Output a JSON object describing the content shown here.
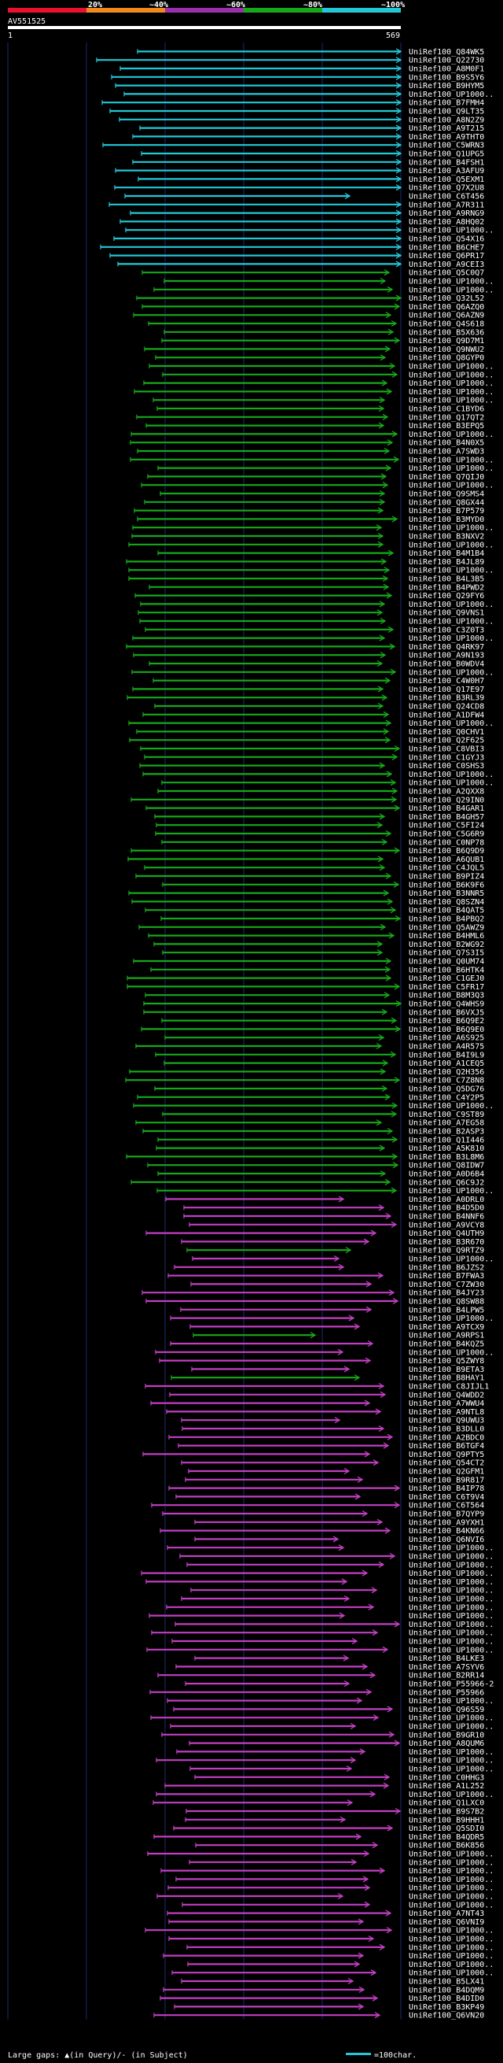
{
  "chart_data": {
    "type": "alignment-map",
    "title": "AV551525",
    "query_range": [
      1,
      569
    ],
    "axis": {
      "start_label": "1",
      "end_label": "569"
    },
    "identity_legend": [
      {
        "label": "20%",
        "color": "#e8122e"
      },
      {
        "label": "~40%",
        "color": "#f08a1c"
      },
      {
        "label": "~60%",
        "color": "#9b2fae"
      },
      {
        "label": "~80%",
        "color": "#17a81a"
      },
      {
        "label": "~100%",
        "color": "#23c8d8"
      }
    ],
    "footer_note": "Large gaps: ▲(in Query)/- (in Subject)",
    "scale_note": "=100char.",
    "group_colors": {
      "cyan": "#23c8d8",
      "green": "#17a81a",
      "magenta": "#c23fc2"
    },
    "hits": [
      "UniRef100_Q84WK5",
      "UniRef100_Q22730",
      "UniRef100_A8M0F1",
      "UniRef100_B9S5Y6",
      "UniRef100_B9HYM5",
      "UniRef100_UP1000..",
      "UniRef100_B7FMH4",
      "UniRef100_Q9LT35",
      "UniRef100_A8N2Z9",
      "UniRef100_A9T215",
      "UniRef100_A9THT0",
      "UniRef100_C5WRN3",
      "UniRef100_Q1UPG5",
      "UniRef100_B4FSH1",
      "UniRef100_A3AFU9",
      "UniRef100_Q5EXM1",
      "UniRef100_Q7X2U8",
      "UniRef100_C6T456",
      "UniRef100_A7R311",
      "UniRef100_A9RNG9",
      "UniRef100_A8HQ02",
      "UniRef100_UP1000..",
      "UniRef100_Q54X16",
      "UniRef100_B6CHE7",
      "UniRef100_Q6PR17",
      "UniRef100_A9CEI3",
      "UniRef100_Q5C0Q7",
      "UniRef100_UP1000..",
      "UniRef100_UP1000..",
      "UniRef100_Q32L52",
      "UniRef100_Q6AZQ0",
      "UniRef100_Q6AZN9",
      "UniRef100_Q4S618",
      "UniRef100_B5X636",
      "UniRef100_Q9D7M1",
      "UniRef100_Q9NWU2",
      "UniRef100_Q8GYP0",
      "UniRef100_UP1000..",
      "UniRef100_UP1000..",
      "UniRef100_UP1000..",
      "UniRef100_UP1000..",
      "UniRef100_UP1000..",
      "UniRef100_C1BYD6",
      "UniRef100_Q17QT2",
      "UniRef100_B3EPQ5",
      "UniRef100_UP1000..",
      "UniRef100_B4N0X5",
      "UniRef100_A7SWD3",
      "UniRef100_UP1000..",
      "UniRef100_UP1000..",
      "UniRef100_Q7QIJ0",
      "UniRef100_UP1000..",
      "UniRef100_Q9SMS4",
      "UniRef100_Q8GX44",
      "UniRef100_B7P579",
      "UniRef100_B3MYD0",
      "UniRef100_UP1000..",
      "UniRef100_B3NXV2",
      "UniRef100_UP1000..",
      "UniRef100_B4M1B4",
      "UniRef100_B4JL89",
      "UniRef100_UP1000..",
      "UniRef100_B4L3B5",
      "UniRef100_B4PWD2",
      "UniRef100_Q29FY6",
      "UniRef100_UP1000..",
      "UniRef100_Q9VNS1",
      "UniRef100_UP1000..",
      "UniRef100_C3Z0T3",
      "UniRef100_UP1000..",
      "UniRef100_Q4RK97",
      "UniRef100_A9N193",
      "UniRef100_B0WDV4",
      "UniRef100_UP1000..",
      "UniRef100_C4W0H7",
      "UniRef100_Q17E97",
      "UniRef100_B3RL39",
      "UniRef100_Q24CD8",
      "UniRef100_A1DFW4",
      "UniRef100_UP1000..",
      "UniRef100_Q0CHV1",
      "UniRef100_Q2F625",
      "UniRef100_C8VBI3",
      "UniRef100_C1GYJ3",
      "UniRef100_C0SHS3",
      "UniRef100_UP1000..",
      "UniRef100_UP1000..",
      "UniRef100_A2QXX8",
      "UniRef100_Q29IN0",
      "UniRef100_B4GAR1",
      "UniRef100_B4GH57",
      "UniRef100_C5FI24",
      "UniRef100_C5G6R9",
      "UniRef100_C0NP78",
      "UniRef100_B6Q9D9",
      "UniRef100_A6QUB1",
      "UniRef100_C4JQL5",
      "UniRef100_B9PIZ4",
      "UniRef100_B6K9F6",
      "UniRef100_B3NNR5",
      "UniRef100_Q8SZN4",
      "UniRef100_B4QAT5",
      "UniRef100_B4PBQ2",
      "UniRef100_Q5AWZ9",
      "UniRef100_B4HML6",
      "UniRef100_B2WG92",
      "UniRef100_Q7S3I5",
      "UniRef100_Q0UM74",
      "UniRef100_B6HTK4",
      "UniRef100_C1GEJ0",
      "UniRef100_C5FR17",
      "UniRef100_B8M3Q3",
      "UniRef100_Q4WHS9",
      "UniRef100_B6VXJ5",
      "UniRef100_B6Q9E2",
      "UniRef100_B6Q9E0",
      "UniRef100_A6S925",
      "UniRef100_A4R575",
      "UniRef100_B4I9L9",
      "UniRef100_A1CEQ5",
      "UniRef100_Q2H356",
      "UniRef100_C7Z8N8",
      "UniRef100_Q5DG76",
      "UniRef100_C4Y2P5",
      "UniRef100_UP1000..",
      "UniRef100_C9ST89",
      "UniRef100_A7EG58",
      "UniRef100_B2ASP3",
      "UniRef100_Q1I446",
      "UniRef100_A5K810",
      "UniRef100_B3L8M6",
      "UniRef100_Q8IDW7",
      "UniRef100_A0D6B4",
      "UniRef100_Q6C9J2",
      "UniRef100_UP1000..",
      "UniRef100_A0DRL0",
      "UniRef100_B4D5D0",
      "UniRef100_B4NNF6",
      "UniRef100_A9VCY8",
      "UniRef100_Q4UTH9",
      "UniRef100_B3R670",
      "UniRef100_Q9RTZ9",
      "UniRef100_UP1000..",
      "UniRef100_B6JZS2",
      "UniRef100_B7FWA3",
      "UniRef100_C7ZW30",
      "UniRef100_B4JY23",
      "UniRef100_Q8SW88",
      "UniRef100_B4LPW5",
      "UniRef100_UP1000..",
      "UniRef100_A9TCX9",
      "UniRef100_A9RPS1",
      "UniRef100_B4KQZ5",
      "UniRef100_UP1000..",
      "UniRef100_Q5ZWY8",
      "UniRef100_B9ETA3",
      "UniRef100_B8HAY1",
      "UniRef100_C8JIJL1",
      "UniRef100_Q4WDD2",
      "UniRef100_A7WWU4",
      "UniRef100_A9NTL8",
      "UniRef100_Q9UWU3",
      "UniRef100_B3DLL0",
      "UniRef100_A2BDC0",
      "UniRef100_B6TGF4",
      "UniRef100_Q9PTY5",
      "UniRef100_Q54CT2",
      "UniRef100_Q2GFM1",
      "UniRef100_B9R817",
      "UniRef100_B4IP78",
      "UniRef100_C6T9V4",
      "UniRef100_C6T564",
      "UniRef100_B7QYP9",
      "UniRef100_A9YXH1",
      "UniRef100_B4KN66",
      "UniRef100_Q6NVI6",
      "UniRef100_UP1000..",
      "UniRef100_UP1000..",
      "UniRef100_UP1000..",
      "UniRef100_UP1000..",
      "UniRef100_UP1000..",
      "UniRef100_UP1000..",
      "UniRef100_UP1000..",
      "UniRef100_UP1000..",
      "UniRef100_UP1000..",
      "UniRef100_UP1000..",
      "UniRef100_UP1000..",
      "UniRef100_UP1000..",
      "UniRef100_UP1000..",
      "UniRef100_B4LKE3",
      "UniRef100_A7SYV6",
      "UniRef100_B2RR14",
      "UniRef100_P55966-2",
      "UniRef100_P55966",
      "UniRef100_UP1000..",
      "UniRef100_Q96S59",
      "UniRef100_UP1000..",
      "UniRef100_UP1000..",
      "UniRef100_B9GR10",
      "UniRef100_A8QUM6",
      "UniRef100_UP1000..",
      "UniRef100_UP1000..",
      "UniRef100_UP1000..",
      "UniRef100_C0HHG3",
      "UniRef100_A1L252",
      "UniRef100_UP1000..",
      "UniRef100_Q1LXC0",
      "UniRef100_B9S7B2",
      "UniRef100_B9HHH1",
      "UniRef100_Q5SDI0",
      "UniRef100_B4QDR5",
      "UniRef100_B6K856",
      "UniRef100_UP1000..",
      "UniRef100_UP1000..",
      "UniRef100_UP1000..",
      "UniRef100_UP1000..",
      "UniRef100_UP1000..",
      "UniRef100_UP1000..",
      "UniRef100_UP1000..",
      "UniRef100_A7NT43",
      "UniRef100_Q6VNI9",
      "UniRef100_UP1000..",
      "UniRef100_UP1000..",
      "UniRef100_UP1000..",
      "UniRef100_UP1000..",
      "UniRef100_UP1000..",
      "UniRef100_UP1000..",
      "UniRef100_B5LX41",
      "UniRef100_B4DQM9",
      "UniRef100_B4DID0",
      "UniRef100_B3KP49",
      "UniRef100_Q6VN20"
    ]
  }
}
